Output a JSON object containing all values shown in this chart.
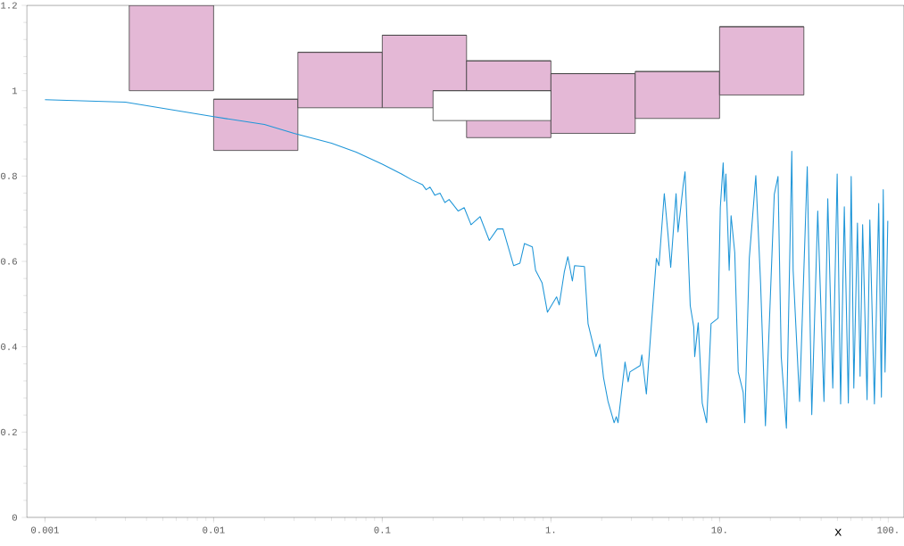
{
  "chart_data": {
    "type": "line",
    "xlabel": "x",
    "log": "x",
    "xlim": [
      0.00078,
      124
    ],
    "ylim": [
      0,
      1.2
    ],
    "xticks": [
      0.001,
      0.01,
      0.1,
      {
        "value": 1,
        "label": "1."
      },
      {
        "value": 10,
        "label": "10."
      },
      {
        "value": 100,
        "label": "100."
      }
    ],
    "yticks": [
      0,
      0.2,
      0.4,
      0.6,
      0.8,
      1,
      1.2
    ],
    "grid": false,
    "marker": "none",
    "line_style": "solid",
    "series": [
      {
        "type": "bar",
        "color": "#e4b8d6",
        "x": [
          0.005623,
          0.01778,
          0.05623,
          0.1778,
          0.5623,
          1.778,
          5.623,
          17.78
        ],
        "base": [
          1.0,
          0.86,
          0.96,
          0.96,
          0.89,
          0.9,
          0.935,
          0.99
        ],
        "values": [
          0.2,
          0.12,
          0.13,
          0.17,
          0.18,
          0.14,
          0.11,
          0.16
        ],
        "xerrors": [
          [
            0.00316,
            0.01
          ],
          [
            0.01,
            0.0316
          ],
          [
            0.0316,
            0.1
          ],
          [
            0.1,
            0.316
          ],
          [
            0.316,
            1
          ],
          [
            1,
            3.16
          ],
          [
            3.16,
            10
          ],
          [
            10,
            31.6
          ]
        ]
      },
      {
        "type": "bar",
        "color": "#ffffff",
        "x": [
          0.447
        ],
        "base": [
          0.93
        ],
        "values": [
          0.07
        ],
        "xerrors": [
          [
            0.2,
            1
          ]
        ]
      },
      {
        "type": "line",
        "color": "#1f96d8",
        "x": [
          0.001,
          0.003,
          0.01,
          0.02,
          0.03,
          0.05,
          0.07,
          0.1,
          0.13,
          0.15,
          0.173,
          0.182,
          0.192,
          0.205,
          0.22,
          0.235,
          0.249,
          0.282,
          0.306,
          0.336,
          0.38,
          0.431,
          0.481,
          0.52,
          0.601,
          0.655,
          0.697,
          0.776,
          0.811,
          0.886,
          0.953,
          1.08,
          1.12,
          1.2,
          1.26,
          1.34,
          1.38,
          1.58,
          1.66,
          1.85,
          1.95,
          2.05,
          2.18,
          2.37,
          2.44,
          2.5,
          2.75,
          2.87,
          2.94,
          3.38,
          3.46,
          3.68,
          3.92,
          4.22,
          4.37,
          4.7,
          4.94,
          5.13,
          5.52,
          5.67,
          6.09,
          6.24,
          6.7,
          7.03,
          7.12,
          7.47,
          7.89,
          8.38,
          8.9,
          9.8,
          10.1,
          10.5,
          10.7,
          10.9,
          11.4,
          11.7,
          12.3,
          12.9,
          13.8,
          14.1,
          15.0,
          16.4,
          17.5,
          18.7,
          21.1,
          22.2,
          23.2,
          24.9,
          26.8,
          27.3,
          29.8,
          33.1,
          35.2,
          38.2,
          41.6,
          43.8,
          46.9,
          49.8,
          52.2,
          54.9,
          58.0,
          60.3,
          62.5,
          65.7,
          68.1,
          70.5,
          74.9,
          77.8,
          82.8,
          87.8,
          91.1,
          93.4,
          95.7,
          99.4
        ],
        "values": [
          0.979,
          0.973,
          0.939,
          0.921,
          0.9,
          0.877,
          0.856,
          0.828,
          0.805,
          0.791,
          0.78,
          0.768,
          0.774,
          0.755,
          0.76,
          0.738,
          0.745,
          0.718,
          0.726,
          0.686,
          0.705,
          0.649,
          0.676,
          0.676,
          0.59,
          0.596,
          0.642,
          0.634,
          0.579,
          0.55,
          0.481,
          0.517,
          0.498,
          0.575,
          0.611,
          0.554,
          0.59,
          0.588,
          0.454,
          0.377,
          0.406,
          0.328,
          0.272,
          0.222,
          0.236,
          0.222,
          0.364,
          0.318,
          0.341,
          0.356,
          0.381,
          0.289,
          0.439,
          0.607,
          0.59,
          0.759,
          0.665,
          0.586,
          0.759,
          0.669,
          0.78,
          0.81,
          0.496,
          0.446,
          0.377,
          0.456,
          0.268,
          0.222,
          0.454,
          0.467,
          0.726,
          0.831,
          0.741,
          0.805,
          0.579,
          0.707,
          0.621,
          0.341,
          0.293,
          0.222,
          0.607,
          0.801,
          0.55,
          0.215,
          0.757,
          0.799,
          0.377,
          0.209,
          0.858,
          0.579,
          0.272,
          0.822,
          0.241,
          0.718,
          0.272,
          0.747,
          0.303,
          0.805,
          0.266,
          0.728,
          0.268,
          0.799,
          0.303,
          0.69,
          0.331,
          0.686,
          0.276,
          0.697,
          0.266,
          0.736,
          0.282,
          0.768,
          0.341,
          0.695
        ]
      }
    ]
  }
}
